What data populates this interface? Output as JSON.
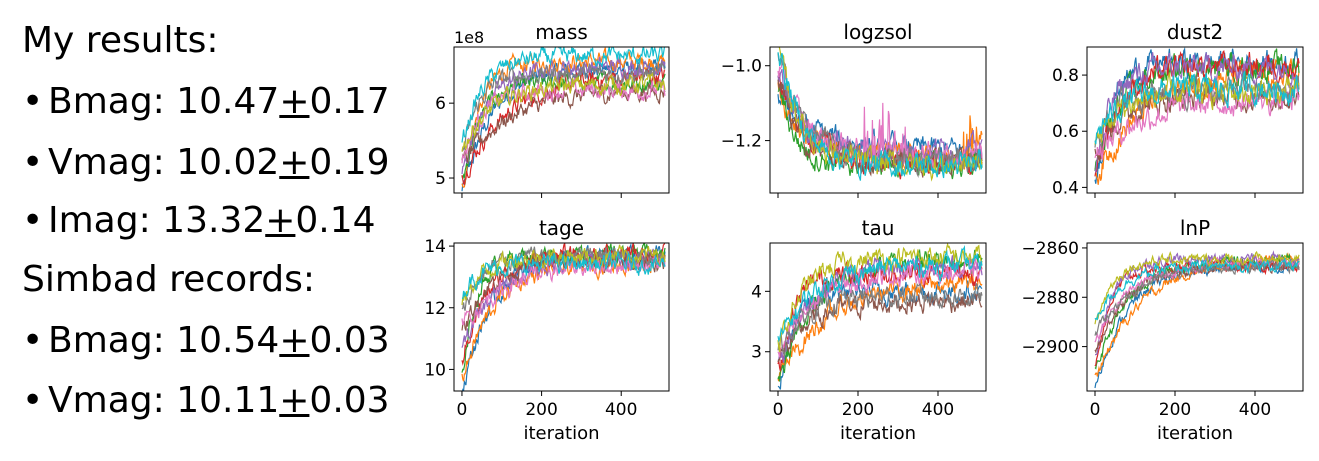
{
  "results": {
    "heading": "My results:",
    "items": [
      {
        "band": "Bmag: ",
        "value": "10.47",
        "pm": "+",
        "err": "0.17"
      },
      {
        "band": "Vmag: ",
        "value": "10.02",
        "pm": "+",
        "err": "0.19"
      },
      {
        "band": "Imag: ",
        "value": "13.32",
        "pm": "+",
        "err": "0.14"
      }
    ]
  },
  "simbad": {
    "heading": "Simbad records:",
    "items": [
      {
        "band": "Bmag: ",
        "value": "10.54",
        "pm": "+",
        "err": "0.03"
      },
      {
        "band": "Vmag: ",
        "value": "10.11",
        "pm": "+",
        "err": "0.03"
      }
    ]
  },
  "bullet_glyph": "•",
  "chart_data": [
    {
      "type": "line",
      "title": "mass",
      "xlabel": "",
      "ylabel": "",
      "offset_text": "1e8",
      "xlim": [
        -20,
        520
      ],
      "ylim": [
        4.8,
        6.75
      ],
      "yticks": [
        5,
        6
      ],
      "ytick_labels": [
        "5",
        "6"
      ],
      "xticks": [
        0,
        200,
        400
      ],
      "xtick_labels": [],
      "start": [
        4.8,
        5.5
      ],
      "end": [
        6.1,
        6.65
      ],
      "noise": 0.09,
      "spike": 0.0
    },
    {
      "type": "line",
      "title": "logzsol",
      "xlabel": "",
      "ylabel": "",
      "xlim": [
        -20,
        520
      ],
      "ylim": [
        -1.34,
        -0.95
      ],
      "yticks": [
        -1.2,
        -1.0
      ],
      "ytick_labels": [
        "−1.2",
        "−1.0"
      ],
      "xticks": [
        0,
        200,
        400
      ],
      "xtick_labels": [],
      "start": [
        -1.08,
        -0.96
      ],
      "end": [
        -1.27,
        -1.22
      ],
      "noise": 0.025,
      "spike": 0.14
    },
    {
      "type": "line",
      "title": "dust2",
      "xlabel": "",
      "ylabel": "",
      "xlim": [
        -20,
        520
      ],
      "ylim": [
        0.38,
        0.9
      ],
      "yticks": [
        0.4,
        0.6,
        0.8
      ],
      "ytick_labels": [
        "0.4",
        "0.6",
        "0.8"
      ],
      "xticks": [
        0,
        200,
        400
      ],
      "xtick_labels": [],
      "start": [
        0.42,
        0.58
      ],
      "end": [
        0.7,
        0.86
      ],
      "noise": 0.035,
      "spike": 0.0
    },
    {
      "type": "line",
      "title": "tage",
      "xlabel": "iteration",
      "ylabel": "",
      "xlim": [
        -20,
        520
      ],
      "ylim": [
        9.3,
        14.1
      ],
      "yticks": [
        10,
        12,
        14
      ],
      "ytick_labels": [
        "10",
        "12",
        "14"
      ],
      "xticks": [
        0,
        200,
        400
      ],
      "xtick_labels": [
        "0",
        "200",
        "400"
      ],
      "start": [
        9.4,
        12.5
      ],
      "end": [
        13.4,
        13.8
      ],
      "noise": 0.22,
      "spike": 0.0
    },
    {
      "type": "line",
      "title": "tau",
      "xlabel": "iteration",
      "ylabel": "",
      "xlim": [
        -20,
        520
      ],
      "ylim": [
        2.35,
        4.8
      ],
      "yticks": [
        3,
        4
      ],
      "ytick_labels": [
        "3",
        "4"
      ],
      "xticks": [
        0,
        200,
        400
      ],
      "xtick_labels": [
        "0",
        "200",
        "400"
      ],
      "start": [
        2.45,
        3.15
      ],
      "end": [
        3.7,
        4.6
      ],
      "noise": 0.13,
      "spike": 0.0
    },
    {
      "type": "line",
      "title": "lnP",
      "xlabel": "iteration",
      "ylabel": "",
      "xlim": [
        -20,
        520
      ],
      "ylim": [
        -2918,
        -2858
      ],
      "yticks": [
        -2900,
        -2880,
        -2860
      ],
      "ytick_labels": [
        "−2900",
        "−2880",
        "−2860"
      ],
      "xticks": [
        0,
        200,
        400
      ],
      "xtick_labels": [
        "0",
        "200",
        "400"
      ],
      "start": [
        -2916,
        -2888
      ],
      "end": [
        -2868,
        -2864
      ],
      "noise": 1.6,
      "spike": 0.0
    }
  ],
  "series_colors": [
    "#1f77b4",
    "#ff7f0e",
    "#2ca02c",
    "#d62728",
    "#9467bd",
    "#8c564b",
    "#e377c2",
    "#7f7f7f",
    "#bcbd22",
    "#17becf"
  ],
  "iterations": 512
}
